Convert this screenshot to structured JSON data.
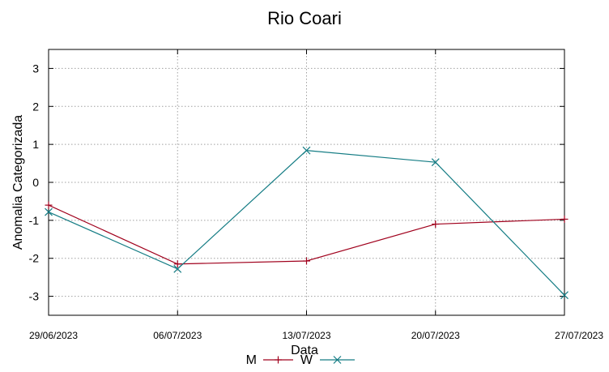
{
  "chart_data": {
    "type": "line",
    "title": "Rio Coari",
    "xlabel": "Data",
    "ylabel": "Anomalia Categorizada",
    "x": [
      "29/06/2023",
      "06/07/2023",
      "13/07/2023",
      "20/07/2023",
      "27/07/2023"
    ],
    "ylim": [
      -3.5,
      3.5
    ],
    "yticks": [
      -3,
      -2,
      -1,
      0,
      1,
      2,
      3
    ],
    "grid": true,
    "legend_position": "bottom-center",
    "series": [
      {
        "name": "M",
        "color": "#a0001c",
        "marker": "plus",
        "values": [
          -0.6,
          -2.15,
          -2.07,
          -1.1,
          -0.97
        ]
      },
      {
        "name": "W",
        "color": "#147c84",
        "marker": "cross",
        "values": [
          -0.78,
          -2.28,
          0.84,
          0.53,
          -2.97
        ]
      }
    ]
  }
}
